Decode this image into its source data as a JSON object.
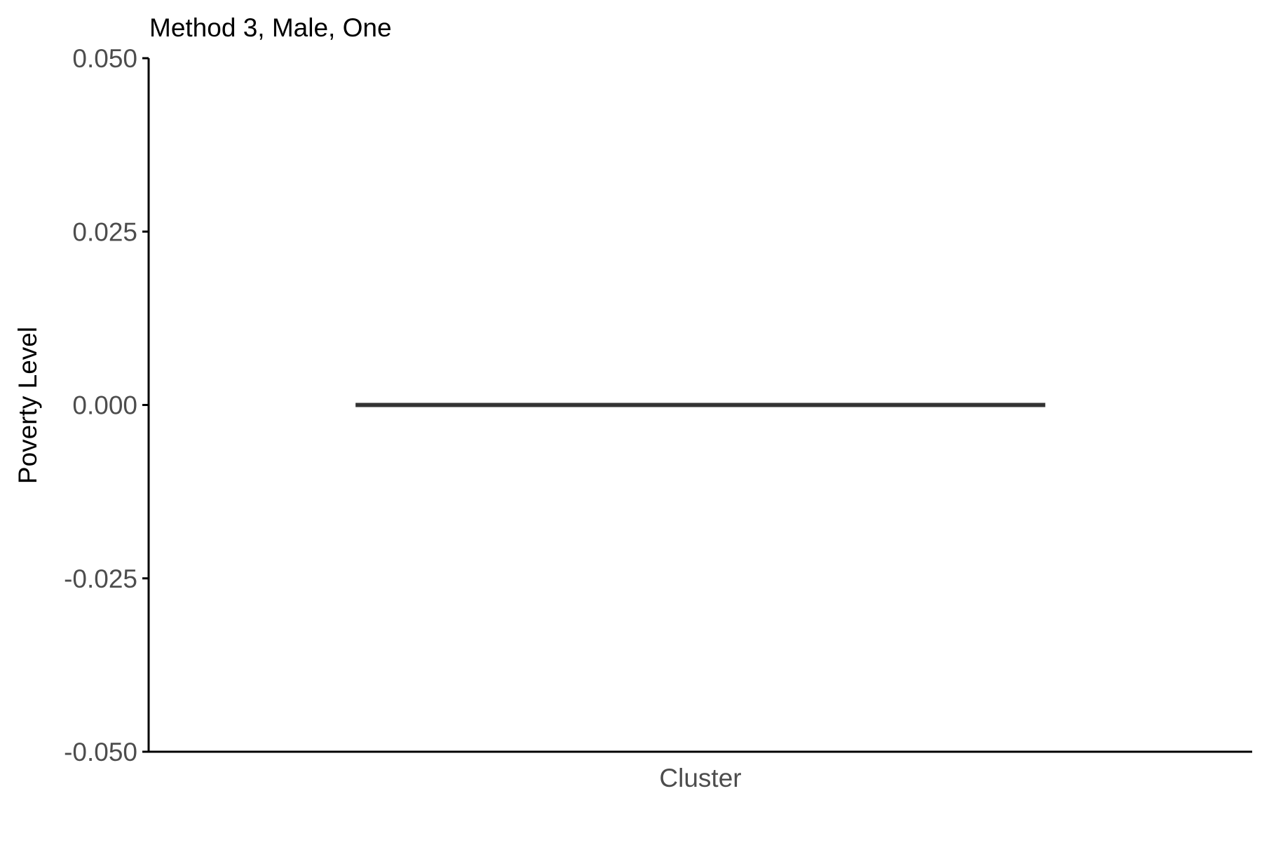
{
  "chart_data": {
    "type": "boxplot",
    "title": "Method 3, Male, One",
    "xlabel": "",
    "ylabel": "Poverty Level",
    "categories": [
      "Cluster"
    ],
    "series": [
      {
        "name": "",
        "category": "Cluster",
        "min": 0.0,
        "q1": 0.0,
        "median": 0.0,
        "q3": 0.0,
        "max": 0.0
      }
    ],
    "ylim": [
      -0.05,
      0.05
    ],
    "yticks": [
      -0.05,
      -0.025,
      0.0,
      0.025,
      0.05
    ],
    "ytick_labels": [
      "-0.050",
      "-0.025",
      "0.000",
      "0.025",
      "0.050"
    ],
    "grid": false,
    "legend": "none"
  },
  "colors": {
    "axis": "#000000",
    "tick_label": "#4d4d4d",
    "box_line": "#333333",
    "title": "#000000"
  }
}
